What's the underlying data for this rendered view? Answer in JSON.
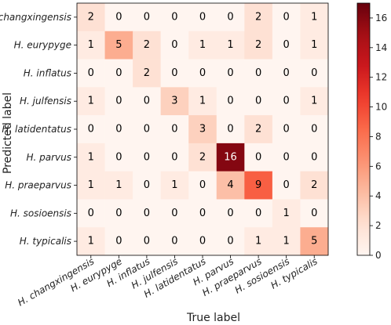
{
  "chart_data": {
    "type": "heatmap",
    "title": "",
    "xlabel": "True label",
    "ylabel": "Predicted label",
    "x_categories": [
      "H. changxingensis",
      "H. eurypyge",
      "H. inflatus",
      "H. julfensis",
      "H. latidentatus",
      "H. parvus",
      "H. praeparvus",
      "H. sosioensis",
      "H. typicalis"
    ],
    "y_categories": [
      "H. changxingensis",
      "H. eurypyge",
      "H. inflatus",
      "H. julfensis",
      "H. latidentatus",
      "H. parvus",
      "H. praeparvus",
      "H. sosioensis",
      "H. typicalis"
    ],
    "values": [
      [
        2,
        0,
        0,
        0,
        0,
        0,
        2,
        0,
        1
      ],
      [
        1,
        5,
        2,
        0,
        1,
        1,
        2,
        0,
        1
      ],
      [
        0,
        0,
        2,
        0,
        0,
        0,
        0,
        0,
        0
      ],
      [
        1,
        0,
        0,
        3,
        1,
        0,
        0,
        0,
        1
      ],
      [
        0,
        0,
        0,
        0,
        3,
        0,
        2,
        0,
        0
      ],
      [
        1,
        0,
        0,
        0,
        2,
        16,
        0,
        0,
        0
      ],
      [
        1,
        1,
        0,
        1,
        0,
        4,
        9,
        0,
        2
      ],
      [
        0,
        0,
        0,
        0,
        0,
        0,
        0,
        1,
        0
      ],
      [
        1,
        0,
        0,
        0,
        0,
        0,
        1,
        1,
        5
      ]
    ],
    "colorbar": {
      "min": 0,
      "max": 17,
      "ticks": [
        0,
        2,
        4,
        6,
        8,
        10,
        12,
        14,
        16
      ],
      "colormap": "Reds",
      "low_color": "#fff5f0",
      "high_color": "#67000d"
    }
  }
}
